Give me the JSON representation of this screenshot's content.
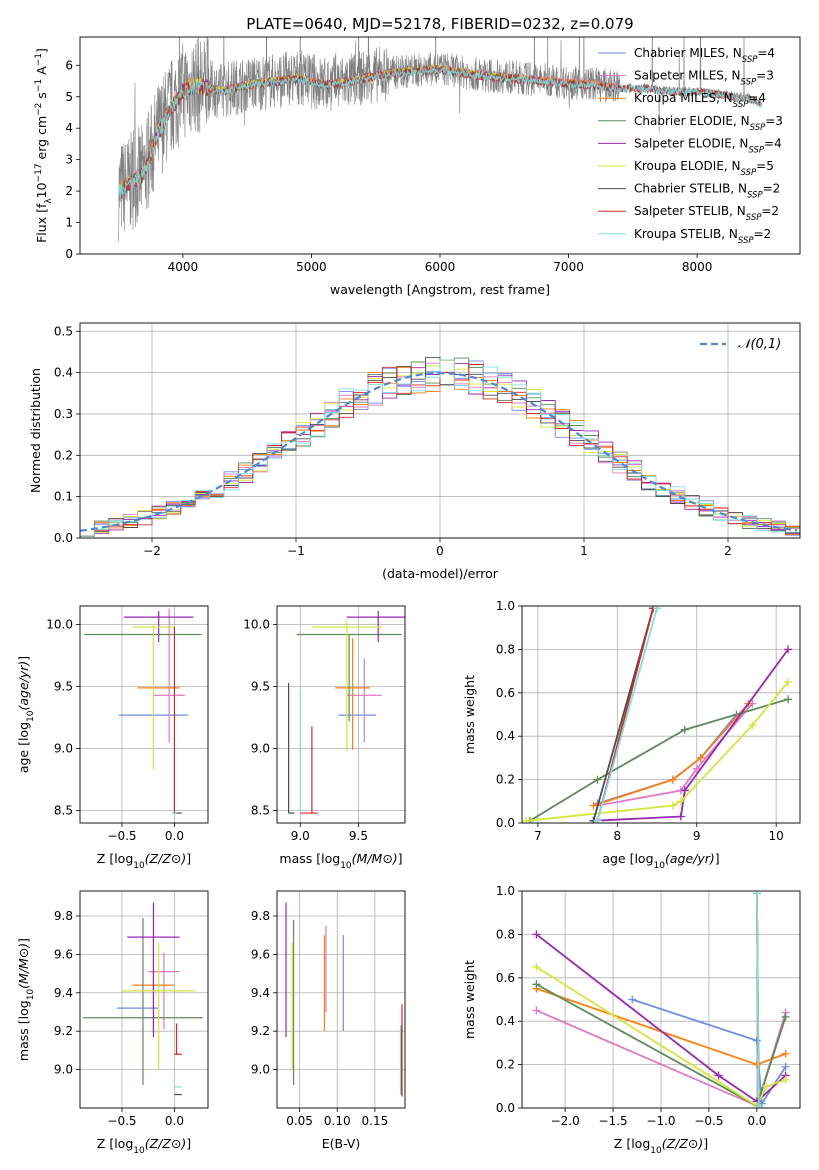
{
  "figure": {
    "title": "PLATE=0640, MJD=52178, FIBERID=0232, z=0.079"
  },
  "colors": {
    "Chabrier MILES": "#6b8de3",
    "Salpeter MILES": "#e377c2",
    "Kroupa MILES": "#ff7f0e",
    "Chabrier ELODIE": "#5b8c5a",
    "Salpeter ELODIE": "#9b27b0",
    "Kroupa ELODIE": "#d4e63a",
    "Chabrier STELIB": "#4d4d4d",
    "Salpeter STELIB": "#d62728",
    "Kroupa STELIB": "#7fdfe0",
    "data": "#808080",
    "gaussian": "#4a89dc",
    "grid": "#b0b0b0"
  },
  "chart_data": [
    {
      "id": "spectrum",
      "type": "line",
      "xlabel": "wavelength [Angstrom, rest frame]",
      "ylabel": "Flux [f_λ10^-17 erg cm^-2 s^-1 A^-1]",
      "xlim": [
        3200,
        8800
      ],
      "ylim": [
        0,
        6.9
      ],
      "xticks": [
        4000,
        5000,
        6000,
        7000,
        8000
      ],
      "yticks": [
        0,
        1,
        2,
        3,
        4,
        5,
        6
      ],
      "grid": false,
      "legend_position": "right",
      "legend": [
        {
          "base": "Chabrier MILES, N",
          "sub": "SSP",
          "tail": "=4"
        },
        {
          "base": "Salpeter MILES, N",
          "sub": "SSP",
          "tail": "=3"
        },
        {
          "base": "Kroupa MILES, N",
          "sub": "SSP",
          "tail": "=4"
        },
        {
          "base": "Chabrier ELODIE, N",
          "sub": "SSP",
          "tail": "=3"
        },
        {
          "base": "Salpeter ELODIE, N",
          "sub": "SSP",
          "tail": "=4"
        },
        {
          "base": "Kroupa ELODIE, N",
          "sub": "SSP",
          "tail": "=5"
        },
        {
          "base": "Chabrier STELIB, N",
          "sub": "SSP",
          "tail": "=2"
        },
        {
          "base": "Salpeter STELIB, N",
          "sub": "SSP",
          "tail": "=2"
        },
        {
          "base": "Kroupa STELIB, N",
          "sub": "SSP",
          "tail": "=2"
        }
      ],
      "data_envelope": [
        [
          3500,
          2.0
        ],
        [
          3700,
          2.6
        ],
        [
          3800,
          3.8
        ],
        [
          3900,
          4.6
        ],
        [
          4000,
          5.2
        ],
        [
          4100,
          5.4
        ],
        [
          4300,
          5.2
        ],
        [
          4500,
          5.4
        ],
        [
          4700,
          5.5
        ],
        [
          4900,
          5.6
        ],
        [
          5100,
          5.4
        ],
        [
          5300,
          5.5
        ],
        [
          5500,
          5.7
        ],
        [
          5700,
          5.8
        ],
        [
          6000,
          5.9
        ],
        [
          6300,
          5.7
        ],
        [
          6600,
          5.6
        ],
        [
          6900,
          5.5
        ],
        [
          7200,
          5.4
        ],
        [
          7400,
          5.3
        ],
        [
          7600,
          5.3
        ],
        [
          7800,
          5.2
        ],
        [
          8000,
          5.2
        ],
        [
          8200,
          5.1
        ],
        [
          8400,
          5.0
        ],
        [
          8500,
          4.8
        ]
      ]
    },
    {
      "id": "residuals",
      "type": "histogram",
      "xlabel": "(data-model)/error",
      "ylabel": "Normed distribution",
      "xlim": [
        -2.5,
        2.5
      ],
      "ylim": [
        0,
        0.52
      ],
      "xticks": [
        -2,
        -1,
        0,
        1,
        2
      ],
      "yticks": [
        0.0,
        0.1,
        0.2,
        0.3,
        0.4,
        0.5
      ],
      "grid": true,
      "bin_width": 0.1,
      "legend": "𝒩(0,1)",
      "legend_position": "top-right"
    },
    {
      "id": "age_vs_Z",
      "type": "errorbar",
      "xlabel": "Z [log10(Z/Z⊙)]",
      "ylabel": "age  [log10(age/yr)]",
      "xlim": [
        -0.9,
        0.32
      ],
      "ylim": [
        8.4,
        10.15
      ],
      "xticks": [
        -0.5,
        0.0
      ],
      "yticks": [
        8.5,
        9.0,
        9.5,
        10.0
      ],
      "grid": true,
      "points": [
        {
          "series": "Chabrier MILES",
          "x": -0.2,
          "xerr": [
            0.33,
            0.33
          ],
          "y": 9.27,
          "yerr": [
            0,
            0
          ]
        },
        {
          "series": "Salpeter MILES",
          "x": -0.05,
          "xerr": [
            0.15,
            0.15
          ],
          "y": 9.43,
          "yerr": [
            0.38,
            0.7
          ]
        },
        {
          "series": "Kroupa MILES",
          "x": -0.15,
          "xerr": [
            0.2,
            0.2
          ],
          "y": 9.49,
          "yerr": [
            0,
            0
          ]
        },
        {
          "series": "Chabrier ELODIE",
          "x": -0.3,
          "xerr": [
            0.56,
            0.56
          ],
          "y": 9.92,
          "yerr": [
            0,
            0
          ]
        },
        {
          "series": "Salpeter ELODIE",
          "x": -0.15,
          "xerr": [
            0.33,
            0.33
          ],
          "y": 10.06,
          "yerr": [
            0.2,
            0.05
          ]
        },
        {
          "series": "Kroupa ELODIE",
          "x": -0.2,
          "xerr": [
            0.2,
            0.2
          ],
          "y": 9.98,
          "yerr": [
            1.15,
            0.02
          ]
        },
        {
          "series": "Chabrier STELIB",
          "x": 0.02,
          "xerr": [
            0.03,
            0.05
          ],
          "y": 8.48,
          "yerr": [
            0,
            0
          ]
        },
        {
          "series": "Salpeter STELIB",
          "x": 0.0,
          "xerr": [
            0.02,
            0.02
          ],
          "y": 8.48,
          "yerr": [
            0,
            1.5
          ]
        },
        {
          "series": "Kroupa STELIB",
          "x": 0.0,
          "xerr": [
            0.02,
            0.02
          ],
          "y": 8.48,
          "yerr": [
            0,
            0
          ]
        }
      ]
    },
    {
      "id": "age_vs_mass",
      "type": "errorbar",
      "xlabel": "mass [log10(M/M⊙)]",
      "ylabel": "",
      "xlim": [
        8.8,
        9.9
      ],
      "ylim": [
        8.4,
        10.15
      ],
      "xticks": [
        9.0,
        9.5
      ],
      "yticks": [
        8.5,
        9.0,
        9.5,
        10.0
      ],
      "grid": true,
      "points": [
        {
          "series": "Chabrier MILES",
          "x": 9.49,
          "xerr": [
            0.16,
            0.16
          ],
          "y": 9.27,
          "yerr": [
            0,
            0
          ]
        },
        {
          "series": "Salpeter MILES",
          "x": 9.55,
          "xerr": [
            0.15,
            0.15
          ],
          "y": 9.43,
          "yerr": [
            0.38,
            0.3
          ]
        },
        {
          "series": "Kroupa MILES",
          "x": 9.45,
          "xerr": [
            0.15,
            0.15
          ],
          "y": 9.49,
          "yerr": [
            0.5,
            0.4
          ]
        },
        {
          "series": "Chabrier ELODIE",
          "x": 9.42,
          "xerr": [
            0.45,
            0.45
          ],
          "y": 9.92,
          "yerr": [
            0.7,
            0
          ]
        },
        {
          "series": "Salpeter ELODIE",
          "x": 9.67,
          "xerr": [
            0.27,
            0.27
          ],
          "y": 10.06,
          "yerr": [
            0.2,
            0.05
          ]
        },
        {
          "series": "Kroupa ELODIE",
          "x": 9.4,
          "xerr": [
            0.3,
            0.3
          ],
          "y": 9.98,
          "yerr": [
            1.0,
            0.05
          ]
        },
        {
          "series": "Chabrier STELIB",
          "x": 8.9,
          "xerr": [
            0.0,
            0.05
          ],
          "y": 8.48,
          "yerr": [
            0,
            1.05
          ]
        },
        {
          "series": "Salpeter STELIB",
          "x": 9.1,
          "xerr": [
            0.1,
            0.05
          ],
          "y": 8.48,
          "yerr": [
            0,
            0.7
          ]
        },
        {
          "series": "Kroupa STELIB",
          "x": 9.0,
          "xerr": [
            0.0,
            0.0
          ],
          "y": 8.48,
          "yerr": [
            0,
            1.0
          ]
        }
      ]
    },
    {
      "id": "weight_vs_age",
      "type": "line",
      "xlabel": "age  [log10(age/yr)]",
      "ylabel": "mass weight",
      "xlim": [
        6.8,
        10.3
      ],
      "ylim": [
        0,
        1.0
      ],
      "xticks": [
        7,
        8,
        9,
        10
      ],
      "yticks": [
        0.0,
        0.2,
        0.4,
        0.6,
        0.8,
        1.0
      ],
      "grid": true,
      "series": [
        {
          "name": "Chabrier MILES",
          "x": [
            7.75,
            8.7,
            9.05,
            9.5
          ],
          "y": [
            0.09,
            0.2,
            0.3,
            0.5
          ]
        },
        {
          "name": "Salpeter MILES",
          "x": [
            7.75,
            8.8,
            9.0,
            9.7
          ],
          "y": [
            0.08,
            0.15,
            0.25,
            0.55
          ]
        },
        {
          "name": "Kroupa MILES",
          "x": [
            7.7,
            8.7,
            9.05,
            9.65
          ],
          "y": [
            0.08,
            0.2,
            0.3,
            0.55
          ]
        },
        {
          "name": "Chabrier ELODIE",
          "x": [
            6.9,
            7.75,
            8.85,
            10.15
          ],
          "y": [
            0.01,
            0.2,
            0.43,
            0.57
          ]
        },
        {
          "name": "Salpeter ELODIE",
          "x": [
            7.7,
            8.8,
            8.85,
            10.15
          ],
          "y": [
            0.01,
            0.03,
            0.15,
            0.8
          ]
        },
        {
          "name": "Kroupa ELODIE",
          "x": [
            6.85,
            8.7,
            8.8,
            9.7,
            10.15
          ],
          "y": [
            0.01,
            0.08,
            0.1,
            0.45,
            0.65
          ]
        },
        {
          "name": "Chabrier STELIB",
          "x": [
            7.7,
            8.45
          ],
          "y": [
            0.01,
            0.99
          ]
        },
        {
          "name": "Salpeter STELIB",
          "x": [
            7.75,
            8.45
          ],
          "y": [
            0.01,
            0.99
          ]
        },
        {
          "name": "Kroupa STELIB",
          "x": [
            7.75,
            8.5
          ],
          "y": [
            0.01,
            0.99
          ]
        }
      ]
    },
    {
      "id": "mass_vs_Z",
      "type": "errorbar",
      "xlabel": "Z [log10(Z/Z⊙)]",
      "ylabel": "mass [log10(M/M⊙)]",
      "xlim": [
        -0.9,
        0.32
      ],
      "ylim": [
        8.8,
        9.93
      ],
      "xticks": [
        -0.5,
        0.0
      ],
      "yticks": [
        9.0,
        9.2,
        9.4,
        9.6,
        9.8
      ],
      "grid": true,
      "points": [
        {
          "series": "Chabrier MILES",
          "x": -0.35,
          "xerr": [
            0.2,
            0.2
          ],
          "y": 9.32,
          "yerr": [
            0,
            0
          ]
        },
        {
          "series": "Salpeter MILES",
          "x": -0.1,
          "xerr": [
            0.15,
            0.15
          ],
          "y": 9.51,
          "yerr": [
            0.3,
            0.1
          ]
        },
        {
          "series": "Kroupa MILES",
          "x": -0.2,
          "xerr": [
            0.2,
            0.2
          ],
          "y": 9.44,
          "yerr": [
            0.25,
            0.25
          ]
        },
        {
          "series": "Chabrier ELODIE",
          "x": -0.3,
          "xerr": [
            0.57,
            0.57
          ],
          "y": 9.27,
          "yerr": [
            0.35,
            0.52
          ]
        },
        {
          "series": "Salpeter ELODIE",
          "x": -0.2,
          "xerr": [
            0.25,
            0.25
          ],
          "y": 9.69,
          "yerr": [
            0.52,
            0.18
          ]
        },
        {
          "series": "Kroupa ELODIE",
          "x": -0.15,
          "xerr": [
            0.35,
            0.35
          ],
          "y": 9.41,
          "yerr": [
            0.41,
            0.25
          ]
        },
        {
          "series": "Chabrier STELIB",
          "x": 0.02,
          "xerr": [
            0.02,
            0.05
          ],
          "y": 8.87,
          "yerr": [
            0,
            0
          ]
        },
        {
          "series": "Salpeter STELIB",
          "x": 0.02,
          "xerr": [
            0.02,
            0.05
          ],
          "y": 9.08,
          "yerr": [
            0,
            0.16
          ]
        },
        {
          "series": "Kroupa STELIB",
          "x": 0.02,
          "xerr": [
            0.02,
            0.05
          ],
          "y": 8.91,
          "yerr": [
            0,
            0
          ]
        }
      ]
    },
    {
      "id": "mass_vs_EBV",
      "type": "errorbar",
      "xlabel": "E(B-V)",
      "ylabel": "",
      "xlim": [
        0.02,
        0.19
      ],
      "ylim": [
        8.8,
        9.93
      ],
      "xticks": [
        0.05,
        0.1,
        0.15
      ],
      "yticks": [
        9.0,
        9.2,
        9.4,
        9.6,
        9.8
      ],
      "grid": true,
      "points": [
        {
          "series": "Chabrier MILES",
          "x": 0.108,
          "xerr": [
            0,
            0
          ],
          "y": 9.45,
          "yerr": [
            0.25,
            0.25
          ]
        },
        {
          "series": "Salpeter MILES",
          "x": 0.085,
          "xerr": [
            0,
            0
          ],
          "y": 9.5,
          "yerr": [
            0.2,
            0.25
          ]
        },
        {
          "series": "Kroupa MILES",
          "x": 0.083,
          "xerr": [
            0,
            0
          ],
          "y": 9.45,
          "yerr": [
            0.25,
            0.25
          ]
        },
        {
          "series": "Chabrier ELODIE",
          "x": 0.042,
          "xerr": [
            0,
            0
          ],
          "y": 9.35,
          "yerr": [
            0.43,
            0.43
          ]
        },
        {
          "series": "Salpeter ELODIE",
          "x": 0.032,
          "xerr": [
            0,
            0
          ],
          "y": 9.52,
          "yerr": [
            0.35,
            0.35
          ]
        },
        {
          "series": "Kroupa ELODIE",
          "x": 0.04,
          "xerr": [
            0,
            0
          ],
          "y": 9.33,
          "yerr": [
            0.33,
            0.33
          ]
        },
        {
          "series": "Chabrier STELIB",
          "x": 0.185,
          "xerr": [
            0,
            0
          ],
          "y": 9.05,
          "yerr": [
            0.18,
            0.18
          ]
        },
        {
          "series": "Salpeter STELIB",
          "x": 0.186,
          "xerr": [
            0,
            0
          ],
          "y": 9.1,
          "yerr": [
            0.24,
            0.24
          ]
        },
        {
          "series": "Kroupa STELIB",
          "x": 0.184,
          "xerr": [
            0,
            0
          ],
          "y": 9.05,
          "yerr": [
            0.18,
            0.18
          ]
        }
      ]
    },
    {
      "id": "weight_vs_Z",
      "type": "line",
      "xlabel": "Z [log10(Z/Z⊙)]",
      "ylabel": "mass weight",
      "xlim": [
        -2.45,
        0.45
      ],
      "ylim": [
        0,
        1.0
      ],
      "xticks": [
        -2.0,
        -1.5,
        -1.0,
        -0.5,
        0.0
      ],
      "yticks": [
        0.0,
        0.2,
        0.4,
        0.6,
        0.8,
        1.0
      ],
      "grid": true,
      "series": [
        {
          "name": "Chabrier MILES",
          "x": [
            -1.3,
            0.0,
            0.05,
            0.3
          ],
          "y": [
            0.5,
            0.31,
            0.02,
            0.19
          ]
        },
        {
          "name": "Salpeter MILES",
          "x": [
            -2.3,
            0.0,
            0.3
          ],
          "y": [
            0.45,
            0.01,
            0.44
          ]
        },
        {
          "name": "Kroupa MILES",
          "x": [
            -2.3,
            0.0,
            0.3
          ],
          "y": [
            0.55,
            0.2,
            0.25
          ]
        },
        {
          "name": "Chabrier ELODIE",
          "x": [
            -2.3,
            0.0,
            0.3
          ],
          "y": [
            0.57,
            0.01,
            0.42
          ]
        },
        {
          "name": "Salpeter ELODIE",
          "x": [
            -2.3,
            -0.4,
            0.0,
            0.3
          ],
          "y": [
            0.8,
            0.15,
            0.03,
            0.15
          ]
        },
        {
          "name": "Kroupa ELODIE",
          "x": [
            -2.3,
            0.0,
            0.1,
            0.3
          ],
          "y": [
            0.65,
            0.01,
            0.1,
            0.13
          ]
        },
        {
          "name": "Chabrier STELIB",
          "x": [
            0.0,
            0.02
          ],
          "y": [
            0.99,
            0.01
          ]
        },
        {
          "name": "Salpeter STELIB",
          "x": [
            0.0,
            0.02
          ],
          "y": [
            0.99,
            0.01
          ]
        },
        {
          "name": "Kroupa STELIB",
          "x": [
            0.0,
            0.02
          ],
          "y": [
            0.99,
            0.01
          ]
        }
      ]
    }
  ]
}
